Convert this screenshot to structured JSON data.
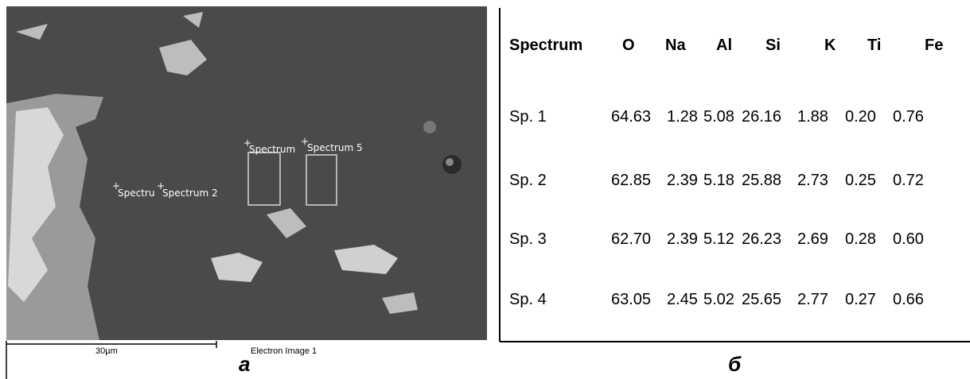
{
  "image": {
    "labels": [
      "Spectru",
      "Spectrum 2",
      "Spectrum",
      "Spectrum 5"
    ],
    "scale_bar": "30µm",
    "caption": "Electron Image 1",
    "panel_label": "a"
  },
  "table": {
    "header": [
      "Spectrum",
      "O",
      "Na",
      "Al",
      "Si",
      "K",
      "Ti",
      "Fe"
    ],
    "rows": [
      [
        "Sp. 1",
        "64.63",
        "1.28",
        "5.08",
        "26.16",
        "1.88",
        "0.20",
        "0.76"
      ],
      [
        "Sp. 2",
        "62.85",
        "2.39",
        "5.18",
        "25.88",
        "2.73",
        "0.25",
        "0.72"
      ],
      [
        "Sp. 3",
        "62.70",
        "2.39",
        "5.12",
        "26.23",
        "2.69",
        "0.28",
        "0.60"
      ],
      [
        "Sp. 4",
        "63.05",
        "2.45",
        "5.02",
        "25.65",
        "2.77",
        "0.27",
        "0.66"
      ]
    ],
    "panel_label": "б"
  }
}
